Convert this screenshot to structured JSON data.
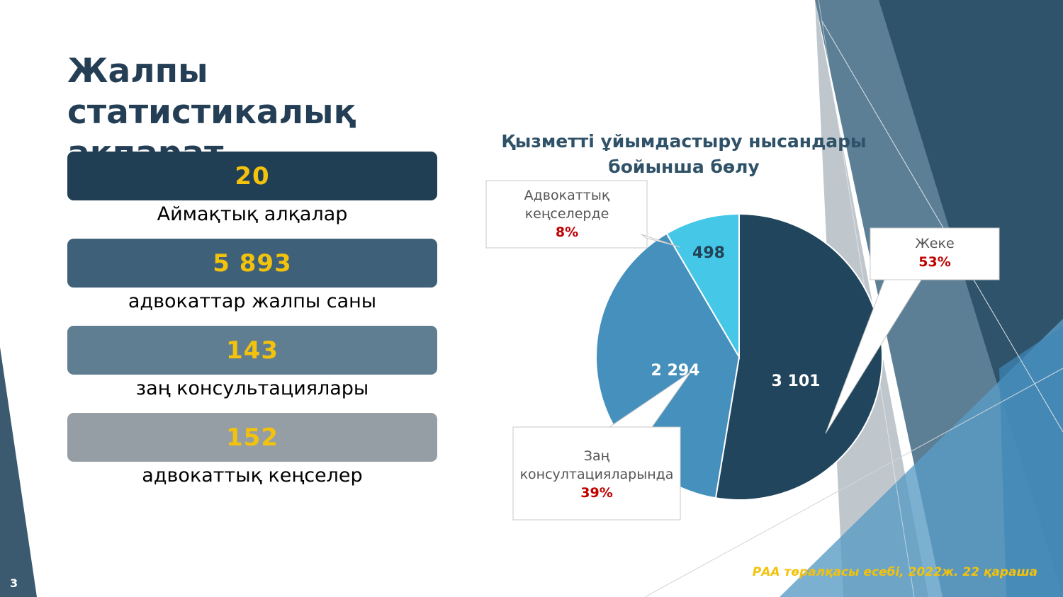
{
  "title": "Жалпы статистикалық ақпарат",
  "stats": [
    {
      "value": "20",
      "label": "Аймақтық алқалар",
      "color": "#213f54"
    },
    {
      "value": "5 893",
      "label": "адвокаттар жалпы саны",
      "color": "#3e6079"
    },
    {
      "value": "143",
      "label": "заң консультациялары",
      "color": "#607e91"
    },
    {
      "value": "152",
      "label": "адвокаттық кеңселер",
      "color": "#959ea5"
    }
  ],
  "chart_title": "Қызметті ұйымдастыру нысандары бойынша бөлу",
  "chart_data": {
    "type": "pie",
    "title": "Қызметті ұйымдастыру нысандары бойынша бөлу",
    "slices": [
      {
        "label": "Жеке",
        "value": 3101,
        "display": "3 101",
        "percent": "53%",
        "color": "#21455c"
      },
      {
        "label": "Заң консултацияларында",
        "value": 2294,
        "display": "2 294",
        "percent": "39%",
        "color": "#4690bd"
      },
      {
        "label": "Адвокаттық кеңселерде",
        "value": 498,
        "display": "498",
        "percent": "8%",
        "color": "#45c8e8"
      }
    ]
  },
  "callouts": {
    "office": {
      "label": "Адвокаттық кеңселерде",
      "percent": "8%"
    },
    "private": {
      "label": "Жеке",
      "percent": "53%"
    },
    "consult": {
      "label": "Заң консултацияларында",
      "percent": "39%"
    }
  },
  "footer": "РАА төралқасы есебі, 2022ж. 22 қараша",
  "page_number": "3"
}
